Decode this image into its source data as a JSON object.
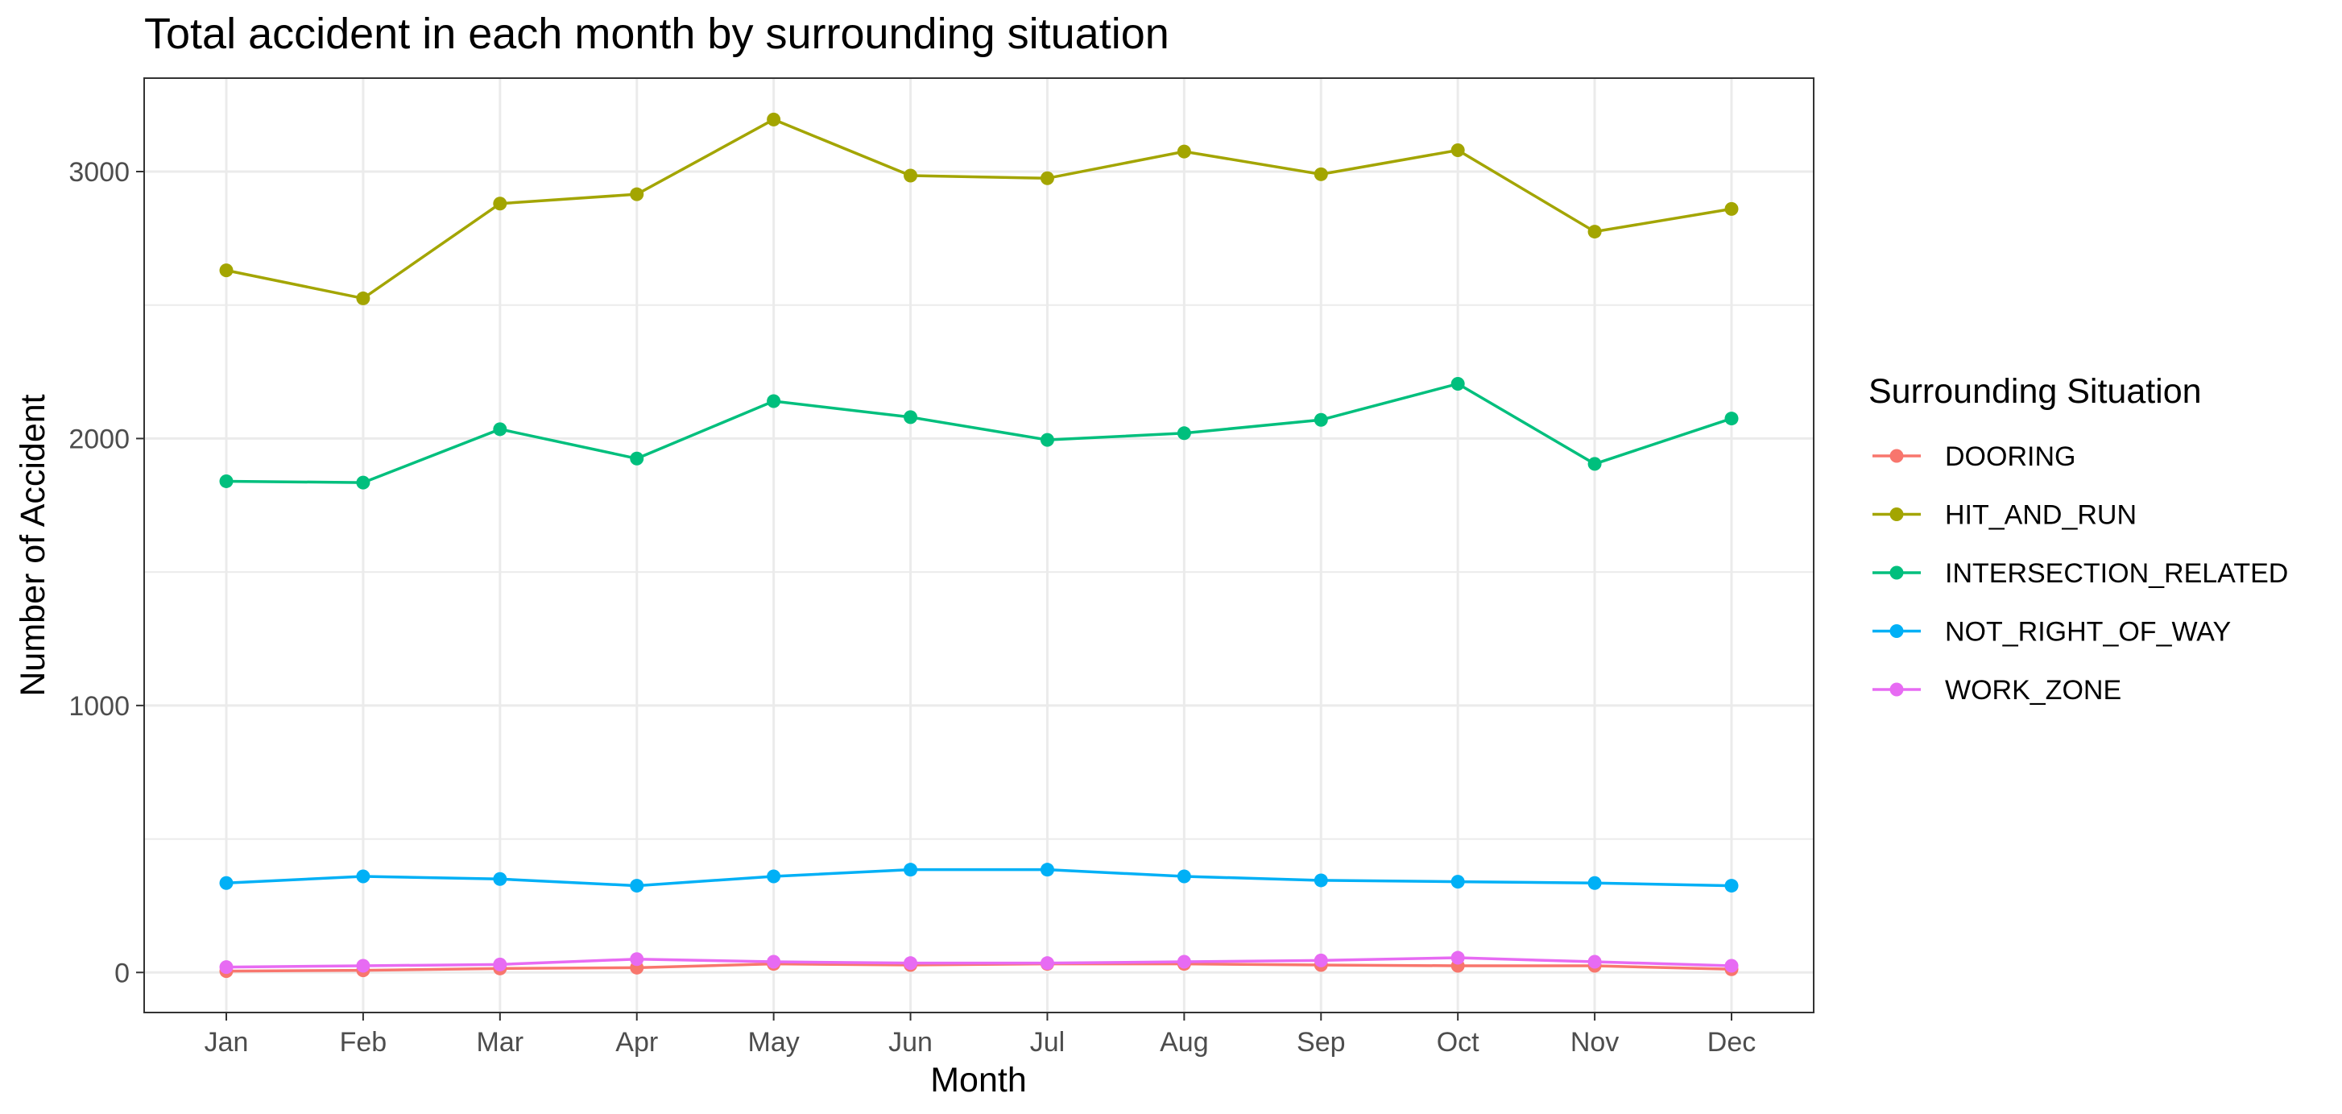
{
  "chart_data": {
    "type": "line",
    "title": "Total accident in each month by surrounding situation",
    "xlabel": "Month",
    "ylabel": "Number of Accident",
    "categories": [
      "Jan",
      "Feb",
      "Mar",
      "Apr",
      "May",
      "Jun",
      "Jul",
      "Aug",
      "Sep",
      "Oct",
      "Nov",
      "Dec"
    ],
    "y_ticks": [
      0,
      1000,
      2000,
      3000
    ],
    "ylim": [
      -150,
      3350
    ],
    "grid": true,
    "legend_title": "Surrounding Situation",
    "legend_position": "right",
    "series": [
      {
        "name": "DOORING",
        "color": "#F8766D",
        "values": [
          5,
          8,
          15,
          18,
          32,
          28,
          32,
          32,
          28,
          25,
          25,
          12
        ]
      },
      {
        "name": "HIT_AND_RUN",
        "color": "#A3A500",
        "values": [
          2630,
          2525,
          2880,
          2915,
          3195,
          2985,
          2975,
          3075,
          2990,
          3080,
          2775,
          2860
        ]
      },
      {
        "name": "INTERSECTION_RELATED",
        "color": "#00BF7D",
        "values": [
          1840,
          1835,
          2035,
          1925,
          2140,
          2080,
          1995,
          2020,
          2070,
          2205,
          1905,
          2075
        ]
      },
      {
        "name": "NOT_RIGHT_OF_WAY",
        "color": "#00B0F6",
        "values": [
          335,
          360,
          350,
          325,
          360,
          385,
          385,
          360,
          345,
          340,
          335,
          325
        ]
      },
      {
        "name": "WORK_ZONE",
        "color": "#E76BF3",
        "values": [
          20,
          25,
          30,
          50,
          40,
          35,
          35,
          40,
          45,
          55,
          40,
          25
        ]
      }
    ]
  }
}
